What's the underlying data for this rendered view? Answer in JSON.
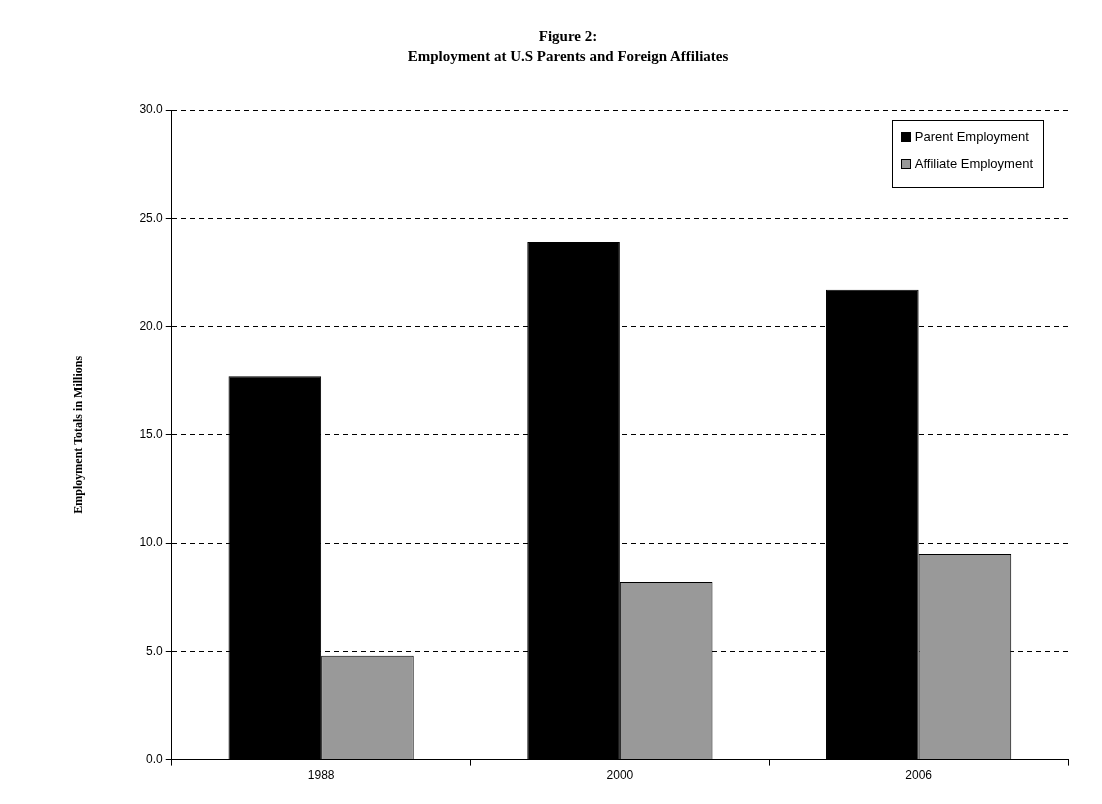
{
  "chart_data": {
    "type": "bar",
    "title": "Figure 2:",
    "subtitle": "Employment at U.S Parents and Foreign Affiliates",
    "ylabel": "Employment Totals in Millions",
    "categories": [
      "1988",
      "2000",
      "2006"
    ],
    "series": [
      {
        "name": "Parent Employment",
        "color": "#000000",
        "values": [
          17.7,
          23.9,
          21.7
        ]
      },
      {
        "name": "Affiliate Employment",
        "color": "#999999",
        "values": [
          4.8,
          8.2,
          9.5
        ]
      }
    ],
    "ylim": [
      0,
      30
    ],
    "yticks": [
      {
        "value": 0,
        "label": "0.0"
      },
      {
        "value": 5,
        "label": "5.0"
      },
      {
        "value": 10,
        "label": "10.0"
      },
      {
        "value": 15,
        "label": "15.0"
      },
      {
        "value": 20,
        "label": "20.0"
      },
      {
        "value": 25,
        "label": "25.0"
      },
      {
        "value": 30,
        "label": "30.0"
      }
    ],
    "grid": "y",
    "legend": "top right"
  }
}
